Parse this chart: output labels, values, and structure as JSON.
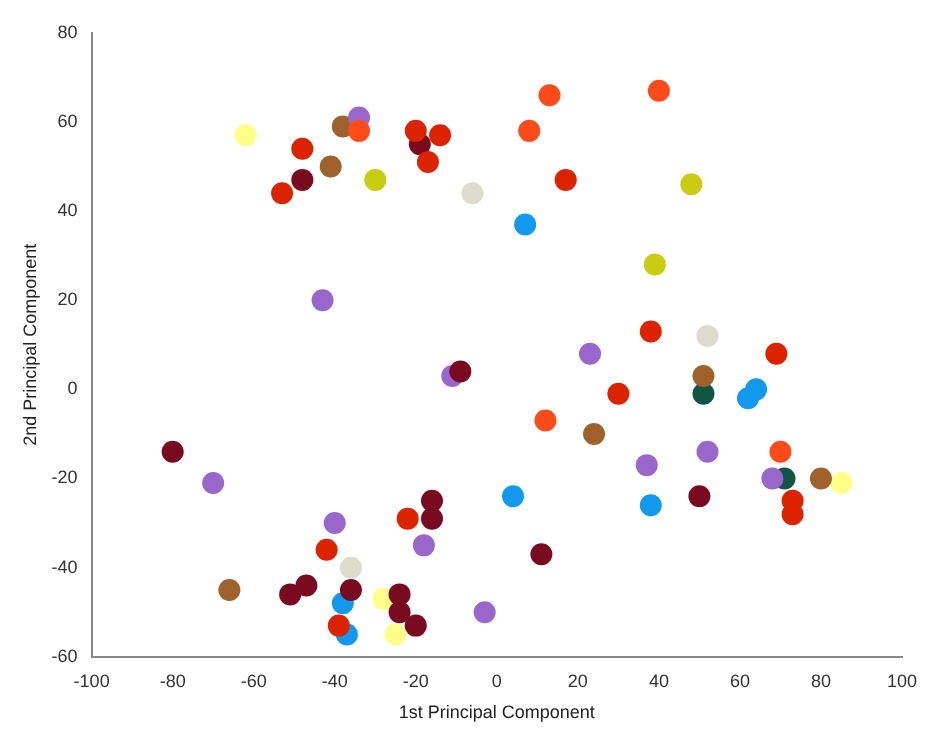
{
  "chart_data": {
    "type": "scatter",
    "xlabel": "1st Principal Component",
    "ylabel": "2nd Principal Component",
    "xlim": [
      -100,
      100
    ],
    "xticks": [
      -100,
      -80,
      -60,
      -40,
      -20,
      0,
      20,
      40,
      60,
      80,
      100
    ],
    "ylim": [
      -60,
      80
    ],
    "yticks": [
      -60,
      -40,
      -20,
      0,
      20,
      40,
      60,
      80
    ],
    "grid": false,
    "legend": false,
    "marker": "circle",
    "series": [
      {
        "color": "#ff4a1a",
        "x": [
          -34,
          13,
          40,
          8,
          12,
          70
        ],
        "values": [
          58,
          66,
          67,
          58,
          -7,
          -14
        ]
      },
      {
        "color": "#dd2200",
        "x": [
          -48,
          -53,
          -20,
          -14,
          -17,
          17,
          38,
          30,
          69,
          73,
          73,
          -42,
          -22,
          -39
        ],
        "values": [
          54,
          44,
          58,
          57,
          51,
          47,
          13,
          -1,
          8,
          -25,
          -28,
          -36,
          -29,
          -53
        ]
      },
      {
        "color": "#7a0a1f",
        "x": [
          -48,
          -19,
          -9,
          -80,
          -16,
          -16,
          -47,
          -51,
          -36,
          -24,
          -24,
          -20,
          11,
          50
        ],
        "values": [
          47,
          55,
          4,
          -14,
          -25,
          -29,
          -44,
          -46,
          -45,
          -46,
          -50,
          -53,
          -37,
          -24
        ]
      },
      {
        "color": "#9966cc",
        "x": [
          -34,
          -43,
          -11,
          23,
          -70,
          -40,
          -18,
          -3,
          37,
          52,
          68
        ],
        "values": [
          61,
          20,
          3,
          8,
          -21,
          -30,
          -35,
          -50,
          -17,
          -14,
          -20
        ]
      },
      {
        "color": "#a0622d",
        "x": [
          -41,
          -38,
          24,
          51,
          80,
          -66
        ],
        "values": [
          50,
          59,
          -10,
          3,
          -20,
          -45
        ]
      },
      {
        "color": "#c9cc10",
        "x": [
          -30,
          48,
          39
        ],
        "values": [
          47,
          46,
          28
        ]
      },
      {
        "color": "#ffff88",
        "x": [
          -62,
          -28,
          -25,
          85
        ],
        "values": [
          57,
          -47,
          -55,
          -21
        ]
      },
      {
        "color": "#dddccc",
        "x": [
          -6,
          52,
          -36
        ],
        "values": [
          44,
          12,
          -40
        ]
      },
      {
        "color": "#1199ee",
        "x": [
          7,
          4,
          38,
          62,
          64,
          -38,
          -37
        ],
        "values": [
          37,
          -24,
          -26,
          -2,
          0,
          -48,
          -55
        ]
      },
      {
        "color": "#115544",
        "x": [
          51,
          71
        ],
        "values": [
          -1,
          -20
        ]
      }
    ]
  }
}
